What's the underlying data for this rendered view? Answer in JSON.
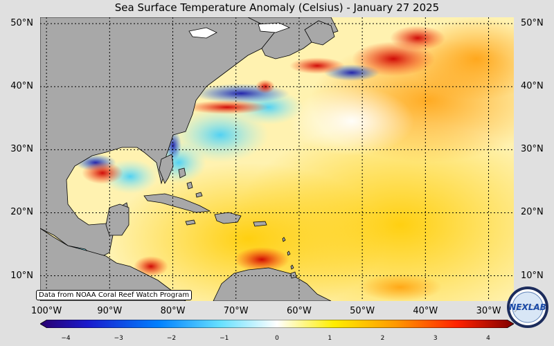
{
  "title": "Sea Surface Temperature Anomaly (Celsius) - January 27 2025",
  "credit": "Data from NOAA Coral Reef Watch Program",
  "logo_text": "NEXLAB",
  "colors": {
    "land": "#a8a8a8",
    "warm": "#ff9900",
    "hot": "#cc0000",
    "cold": "#0033cc",
    "neutral": "#ffffff"
  },
  "map": {
    "lon_range": [
      -101,
      -26
    ],
    "lat_range": [
      6,
      51
    ],
    "lat_ticks": [
      {
        "value": 50,
        "label": "50°N"
      },
      {
        "value": 40,
        "label": "40°N"
      },
      {
        "value": 30,
        "label": "30°N"
      },
      {
        "value": 20,
        "label": "20°N"
      },
      {
        "value": 10,
        "label": "10°N"
      }
    ],
    "lon_ticks": [
      {
        "value": -100,
        "label": "100°W"
      },
      {
        "value": -90,
        "label": "90°W"
      },
      {
        "value": -80,
        "label": "80°W"
      },
      {
        "value": -70,
        "label": "70°W"
      },
      {
        "value": -60,
        "label": "60°W"
      },
      {
        "value": -50,
        "label": "50°W"
      },
      {
        "value": -40,
        "label": "40°W"
      },
      {
        "value": -30,
        "label": "30°W"
      }
    ]
  },
  "colorbar": {
    "range": [
      -4,
      4
    ],
    "ticks": [
      "−4",
      "−3",
      "−2",
      "−1",
      "0",
      "1",
      "2",
      "3",
      "4"
    ]
  }
}
